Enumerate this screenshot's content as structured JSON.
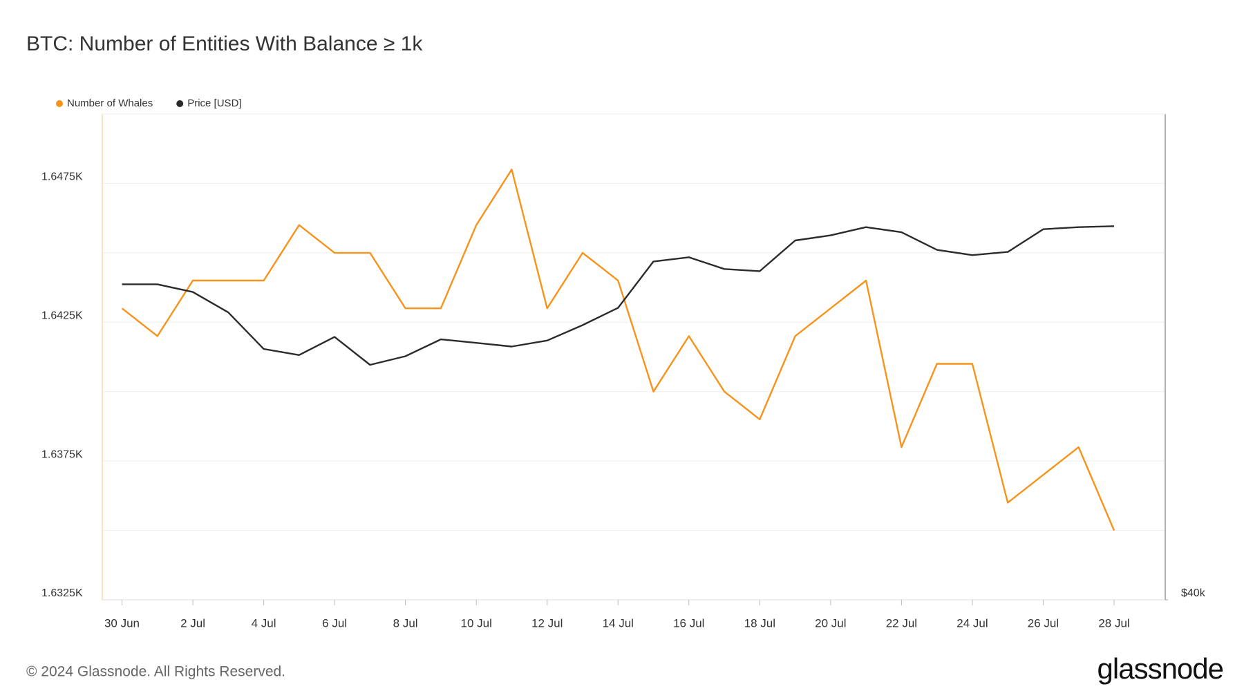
{
  "chart_data": {
    "type": "line",
    "title": "BTC: Number of Entities With Balance ≥ 1k",
    "footer": "© 2024 Glassnode. All Rights Reserved.",
    "brand": "glassnode",
    "categories": [
      "30 Jun",
      null,
      "2 Jul",
      null,
      "4 Jul",
      null,
      "6 Jul",
      null,
      "8 Jul",
      null,
      "10 Jul",
      null,
      "12 Jul",
      null,
      "14 Jul",
      null,
      "16 Jul",
      null,
      "18 Jul",
      null,
      "20 Jul",
      null,
      "22 Jul",
      null,
      "24 Jul",
      null,
      "26 Jul",
      null,
      "28 Jul"
    ],
    "series": [
      {
        "name": "Number of Whales",
        "color": "#f7931a",
        "axis": "y",
        "values": [
          1643,
          1642,
          1644,
          1644,
          1644,
          1646,
          1645,
          1645,
          1643,
          1643,
          1646,
          1648,
          1643,
          1645,
          1644,
          1640,
          1642,
          1640,
          1639,
          1642,
          1643,
          1644,
          1638,
          1641,
          1641,
          1636,
          1637,
          1638,
          1635
        ]
      },
      {
        "name": "Price [USD]",
        "color": "#2b2b2b",
        "axis": "y2",
        "values": [
          63000,
          63000,
          62300,
          60500,
          57400,
          56900,
          58400,
          56100,
          56800,
          58200,
          57900,
          57600,
          58100,
          59400,
          60900,
          65100,
          65500,
          64400,
          64200,
          67100,
          67600,
          68400,
          67900,
          66200,
          65700,
          66000,
          68200,
          68400,
          68500
        ]
      }
    ],
    "ylim": [
      1632.5,
      1650
    ],
    "yticks": [
      {
        "value": 1632.5,
        "label": "1.6325K"
      },
      {
        "value": 1637.5,
        "label": "1.6375K"
      },
      {
        "value": 1642.5,
        "label": "1.6425K"
      },
      {
        "value": 1647.5,
        "label": "1.6475K"
      }
    ],
    "minor_yticks": [
      1635,
      1640,
      1645
    ],
    "y2lim": [
      40000,
      80500
    ],
    "y2ticks": [
      {
        "value": 40000,
        "label": "$40k"
      }
    ],
    "y2_log": true,
    "grid": true,
    "legend": "top-left"
  }
}
